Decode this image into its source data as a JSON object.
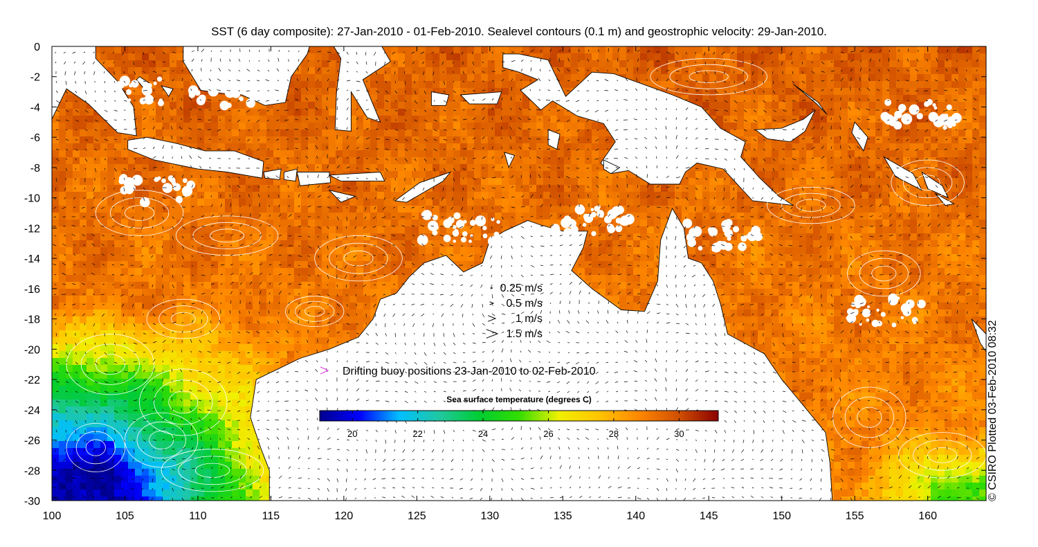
{
  "title": "SST (6 day composite): 27-Jan-2010 - 01-Feb-2010. Sealevel contours (0.1 m) and geostrophic velocity: 29-Jan-2010.",
  "credit": "© CSIRO Plotted 03-Feb-2010 08:32",
  "axes": {
    "x_ticks": [
      "100",
      "105",
      "110",
      "115",
      "120",
      "125",
      "130",
      "135",
      "140",
      "145",
      "150",
      "155",
      "160"
    ],
    "y_ticks": [
      "0",
      "-2",
      "-4",
      "-6",
      "-8",
      "-10",
      "-12",
      "-14",
      "-16",
      "-18",
      "-20",
      "-22",
      "-24",
      "-26",
      "-28",
      "-30"
    ],
    "lon_range": [
      100,
      164
    ],
    "lat_range": [
      -30,
      0
    ]
  },
  "velocity_legend": [
    {
      "label": "0.25 m/s",
      "speed": 0.25
    },
    {
      "label": "0.5 m/s",
      "speed": 0.5
    },
    {
      "label": "1 m/s",
      "speed": 1
    },
    {
      "label": "1.5 m/s",
      "speed": 1.5
    }
  ],
  "buoy_legend": {
    "label": "Drifting buoy positions 23-Jan-2010 to 02-Feb-2010",
    "color": "#e040e0"
  },
  "colorbar": {
    "title": "Sea surface temperature (degrees C)",
    "range": [
      19,
      31.2
    ],
    "ticks": [
      "20",
      "22",
      "24",
      "26",
      "28",
      "30"
    ],
    "colors": [
      "#00008f",
      "#0000ff",
      "#00bfff",
      "#20c8a0",
      "#00cc33",
      "#33dd00",
      "#f0f000",
      "#ffc400",
      "#ff8800",
      "#d05000",
      "#8b0000"
    ]
  },
  "colors": {
    "land": "#ffffff",
    "coast": "#000000",
    "contour": "#ffffff",
    "arrow": "#000000"
  }
}
